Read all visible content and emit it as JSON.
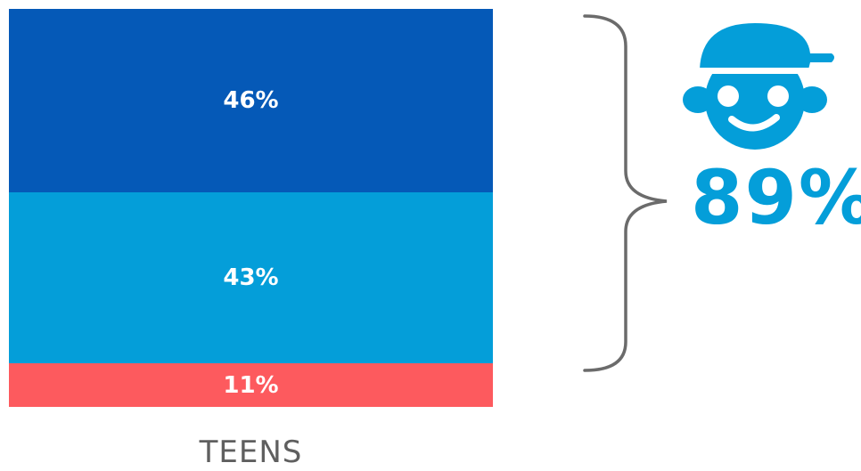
{
  "chart_data": {
    "type": "bar",
    "stacked": true,
    "normalized": true,
    "categories": [
      "TEENS"
    ],
    "series": [
      {
        "values": [
          46
        ],
        "label": "46%",
        "color": "#0559b7"
      },
      {
        "values": [
          43
        ],
        "label": "43%",
        "color": "#049ed9"
      },
      {
        "values": [
          11
        ],
        "label": "11%",
        "color": "#fd5a5e"
      }
    ],
    "ylim": [
      0,
      100
    ]
  },
  "callout": {
    "total_label": "89%",
    "color": "#049ed9",
    "icon": "teen-face-with-cap-icon"
  },
  "labels": {
    "category": "TEENS"
  }
}
